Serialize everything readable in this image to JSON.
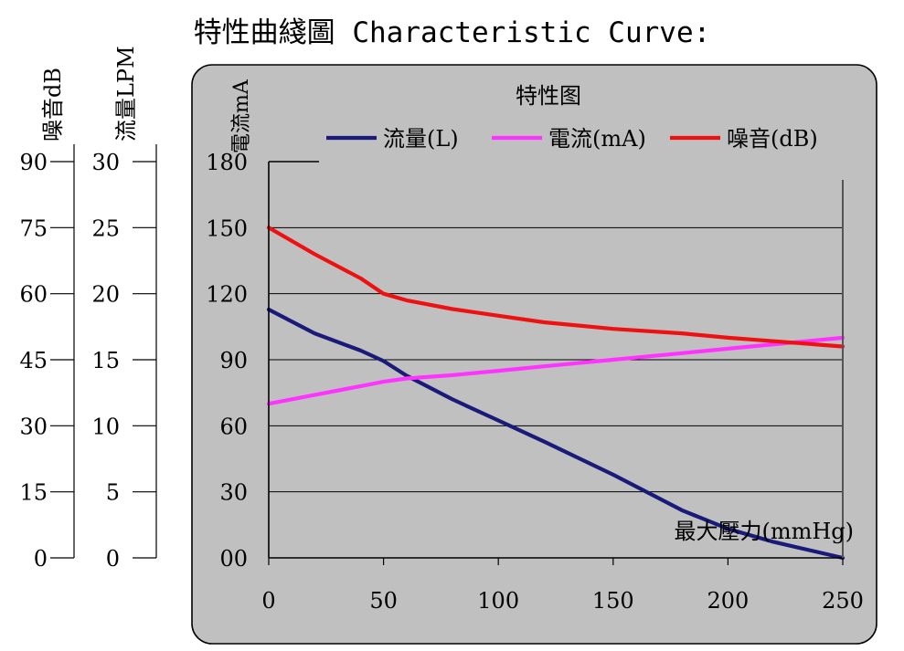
{
  "page": {
    "title": "特性曲綫圖 Characteristic Curve:"
  },
  "chart_data": {
    "type": "line",
    "title": "特性图",
    "xlabel": "最大壓力(mmHg)",
    "ylabel": "電流mA",
    "x": [
      0,
      20,
      40,
      50,
      60,
      80,
      100,
      120,
      150,
      180,
      200,
      220,
      250
    ],
    "xticks": [
      0,
      50,
      100,
      150,
      200,
      250
    ],
    "xtick_labels": [
      "0",
      "50",
      "100",
      "150",
      "200",
      "250"
    ],
    "xlim": [
      0,
      250
    ],
    "yticks": [
      0,
      30,
      60,
      90,
      120,
      150,
      180
    ],
    "ytick_labels": [
      "00",
      "30",
      "60",
      "90",
      "120",
      "150",
      "180"
    ],
    "ylim": [
      0,
      180
    ],
    "grid": true,
    "legend_position": "top",
    "series": [
      {
        "name": "流量(L)",
        "color": "#1a1a7a",
        "axis": "流量LPM",
        "values": [
          18.8,
          17.0,
          15.7,
          14.9,
          13.8,
          12.0,
          10.4,
          8.8,
          6.3,
          3.6,
          2.2,
          1.2,
          0
        ]
      },
      {
        "name": "電流(mA)",
        "color": "#ff33ff",
        "axis": "電流mA",
        "values": [
          70,
          74,
          78,
          80,
          81.5,
          83,
          85,
          87,
          90,
          93,
          95,
          97,
          100
        ]
      },
      {
        "name": "噪音(dB)",
        "color": "#ee1111",
        "axis": "噪音dB",
        "values": [
          75,
          69,
          63.5,
          60,
          58.5,
          56.5,
          55,
          53.5,
          52,
          51,
          50,
          49.2,
          48
        ]
      }
    ],
    "extra_axes": [
      {
        "label": "噪音dB",
        "ticks": [
          0,
          15,
          30,
          45,
          60,
          75,
          90
        ],
        "tick_labels": [
          "0",
          "15",
          "30",
          "45",
          "60",
          "75",
          "90"
        ],
        "lim": [
          0,
          90
        ]
      },
      {
        "label": "流量LPM",
        "ticks": [
          0,
          5,
          10,
          15,
          20,
          25,
          30
        ],
        "tick_labels": [
          "0",
          "5",
          "10",
          "15",
          "20",
          "25",
          "30"
        ],
        "lim": [
          0,
          30
        ]
      }
    ]
  }
}
